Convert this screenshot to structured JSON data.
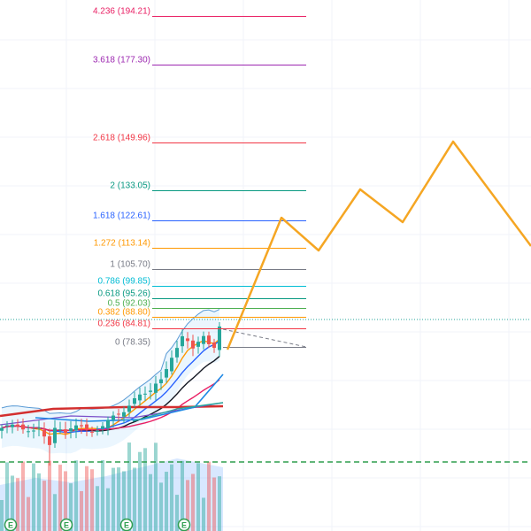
{
  "chart_data": {
    "type": "candlestick-with-fibonacci-extension",
    "title": "",
    "xlabel": "",
    "ylabel": "",
    "price_scale": "linear",
    "grid": true,
    "fib_levels": [
      {
        "label": "4.236 (194.21)",
        "ratio": 4.236,
        "price": 194.21,
        "color": "#e91e63"
      },
      {
        "label": "3.618 (177.30)",
        "ratio": 3.618,
        "price": 177.3,
        "color": "#9c27b0"
      },
      {
        "label": "2.618 (149.96)",
        "ratio": 2.618,
        "price": 149.96,
        "color": "#f23645"
      },
      {
        "label": "2 (133.05)",
        "ratio": 2,
        "price": 133.05,
        "color": "#089981"
      },
      {
        "label": "1.618 (122.61)",
        "ratio": 1.618,
        "price": 122.61,
        "color": "#2962ff"
      },
      {
        "label": "1.272 (113.14)",
        "ratio": 1.272,
        "price": 113.14,
        "color": "#ff9800"
      },
      {
        "label": "1 (105.70)",
        "ratio": 1,
        "price": 105.7,
        "color": "#787b86"
      },
      {
        "label": "0.786 (99.85)",
        "ratio": 0.786,
        "price": 99.85,
        "color": "#00bcd4"
      },
      {
        "label": "0.618 (95.26)",
        "ratio": 0.618,
        "price": 95.26,
        "color": "#089981"
      },
      {
        "label": "0.5 (92.03)",
        "ratio": 0.5,
        "price": 92.03,
        "color": "#4caf50"
      },
      {
        "label": "0.382 (88.80)",
        "ratio": 0.382,
        "price": 88.8,
        "color": "#ff9800"
      },
      {
        "label": "0.236 (84.81)",
        "ratio": 0.236,
        "price": 84.81,
        "color": "#f23645"
      },
      {
        "label": "0 (78.35)",
        "ratio": 0,
        "price": 78.35,
        "color": "#787b86"
      }
    ],
    "current_price_line": 86.5,
    "earnings_markers": [
      "E",
      "E",
      "E",
      "E"
    ],
    "colors": {
      "up": "#26a69a",
      "down": "#ef5350",
      "projection": "#f5a623",
      "dashed_level": "#2e9d4e",
      "current_line": "#26a69a"
    }
  }
}
